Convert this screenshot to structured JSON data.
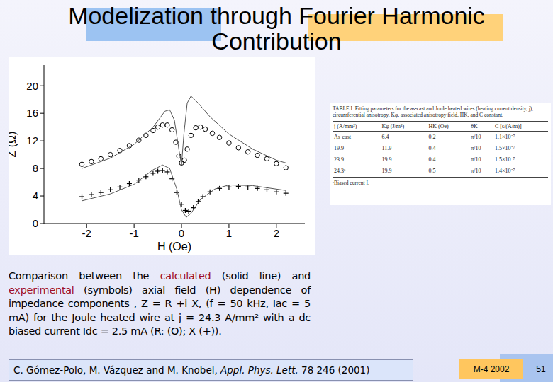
{
  "title": [
    "Modelization through Fourier Harmonic",
    "Contribution"
  ],
  "chart_data": {
    "type": "scatter",
    "x_label": "H (Oe)",
    "y_label": "Z (Ω)",
    "xlim": [
      -2.9,
      2.6
    ],
    "xticks": [
      -2,
      -1,
      0,
      1,
      2
    ],
    "ylim": [
      0,
      23
    ],
    "yticks": [
      0,
      4,
      8,
      12,
      16,
      20
    ],
    "grid": false,
    "series": [
      {
        "name": "R",
        "color": "#000000",
        "marker": "circle",
        "x": [
          -2.1,
          -1.9,
          -1.7,
          -1.5,
          -1.3,
          -1.1,
          -0.9,
          -0.75,
          -0.6,
          -0.5,
          -0.4,
          -0.3,
          -0.2,
          -0.12,
          -0.06,
          0,
          0.06,
          0.12,
          0.2,
          0.3,
          0.4,
          0.5,
          0.65,
          0.8,
          1.0,
          1.2,
          1.4,
          1.6,
          1.8,
          2.0,
          2.2
        ],
        "values": [
          8.6,
          9.0,
          9.4,
          10.0,
          10.6,
          11.3,
          12.1,
          12.8,
          13.5,
          14.0,
          14.3,
          14.3,
          13.6,
          11.8,
          9.8,
          8.8,
          9.2,
          10.8,
          12.8,
          13.9,
          14.0,
          13.7,
          13.1,
          12.5,
          11.7,
          11.0,
          10.4,
          9.9,
          9.4,
          8.7,
          8.1
        ]
      },
      {
        "name": "X",
        "color": "#000000",
        "marker": "plus",
        "x": [
          -2.1,
          -1.9,
          -1.7,
          -1.5,
          -1.3,
          -1.1,
          -0.9,
          -0.75,
          -0.6,
          -0.5,
          -0.4,
          -0.3,
          -0.2,
          -0.1,
          0,
          0.08,
          0.15,
          0.25,
          0.35,
          0.45,
          0.6,
          0.8,
          1.0,
          1.2,
          1.4,
          1.6,
          1.8,
          2.0,
          2.2
        ],
        "values": [
          3.9,
          4.2,
          4.5,
          4.9,
          5.3,
          5.8,
          6.3,
          6.8,
          7.3,
          7.6,
          7.7,
          7.5,
          6.5,
          4.5,
          2.8,
          1.9,
          1.8,
          2.3,
          3.2,
          3.9,
          4.6,
          5.1,
          5.3,
          5.4,
          5.3,
          5.1,
          4.9,
          4.6,
          4.4
        ]
      },
      {
        "color": "#555555",
        "marker": "none",
        "line_style": "solid",
        "x": [
          -2.1,
          -1.5,
          -1.0,
          -0.6,
          -0.35,
          -0.25,
          -0.15,
          -0.05,
          0,
          0.05,
          0.12,
          0.2,
          0.35,
          0.6,
          1.0,
          1.5,
          2.0,
          2.2
        ],
        "values": [
          8.0,
          9.5,
          11.5,
          14.0,
          16.3,
          16.5,
          15.0,
          10.5,
          8.5,
          13.0,
          17.5,
          18.5,
          17.5,
          15.5,
          13.0,
          10.8,
          9.2,
          8.8
        ]
      },
      {
        "color": "#555555",
        "marker": "none",
        "line_style": "solid",
        "x": [
          -2.1,
          -1.5,
          -1.0,
          -0.6,
          -0.4,
          -0.25,
          -0.1,
          0,
          0.1,
          0.2,
          0.4,
          0.7,
          1.0,
          1.5,
          2.0,
          2.2
        ],
        "values": [
          3.3,
          4.3,
          5.7,
          7.8,
          8.5,
          8.0,
          5.0,
          2.0,
          0.9,
          1.5,
          3.5,
          5.0,
          5.6,
          5.5,
          5.0,
          4.8
        ]
      }
    ]
  },
  "table": {
    "caption": "TABLE I. Fitting parameters for the as-cast and Joule heated wires (heating current density, j); circumferential anisotropy, Kφ, associated anisotropy field, HK, and C constant.",
    "header": [
      "j (A/mm²)",
      "Kφ (J/m³)",
      "HK (Oe)",
      "θK",
      "C [s/(A/m)]"
    ],
    "rows": [
      [
        "As-cast",
        "6.4",
        "0.2",
        "π/10",
        "1.1×10⁻⁷"
      ],
      [
        "19.9",
        "11.9",
        "0.4",
        "π/10",
        "1.5×10⁻⁷"
      ],
      [
        "23.9",
        "19.9",
        "0.4",
        "π/10",
        "1.5×10⁻⁷"
      ],
      [
        "24.3ᵃ",
        "19.9",
        "0.5",
        "π/10",
        "1.4×10⁻⁷"
      ]
    ],
    "footnote": "ᵃBiased current I."
  },
  "caption": [
    {
      "text": "Comparison between the "
    },
    {
      "text": "calculated",
      "color": "#a0102a"
    },
    {
      "text": " (solid line) and "
    },
    {
      "text": "experimental",
      "color": "#a0102a"
    },
    {
      "text": " (symbols) axial field (H) dependence of impedance components , Z = R +i X,  (f = 50 kHz, Iac = 5 mA) for the Joule heated wire at  j = 24.3 A/mm² with a dc biased current Idc = 2.5 mA (R: (O); X (+))."
    }
  ],
  "citation": {
    "authors": "C. Gómez-Polo, M. Vázquez and M. Knobel, ",
    "journal": "Appl. Phys. Lett.",
    "ref": " 78 246 (2001)"
  },
  "event": "M-4 2002",
  "page": "51"
}
